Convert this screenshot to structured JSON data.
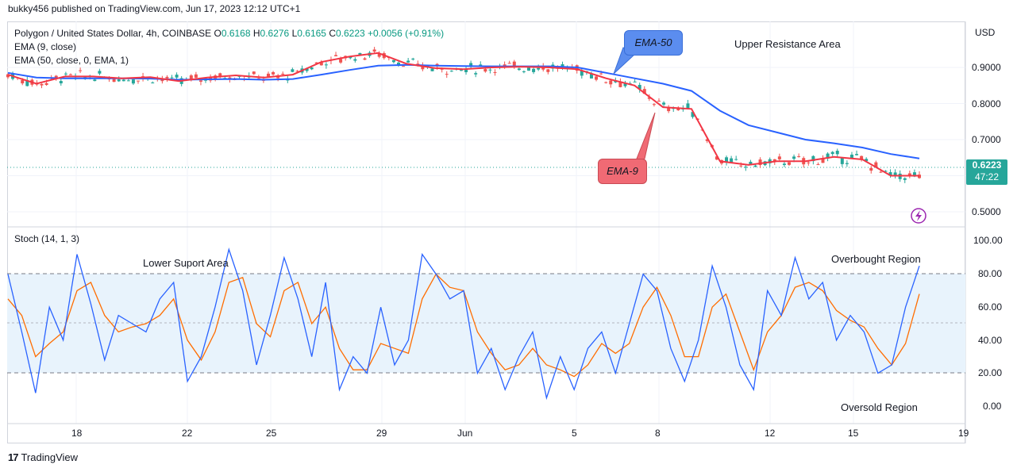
{
  "header": {
    "publisher": "bukky456 published on TradingView.com, Jun 17, 2023 12:12 UTC+1"
  },
  "legend": {
    "symbol": "Polygon / United States Dollar, 4h, COINBASE",
    "open_label": "O",
    "open": "0.6168",
    "high_label": "H",
    "high": "0.6276",
    "low_label": "L",
    "low": "0.6165",
    "close_label": "C",
    "close": "0.6223",
    "change": "+0.0056 (+0.91%)",
    "ema9": "EMA (9, close)",
    "ema50": "EMA (50, close, 0, EMA, 1)",
    "stoch": "Stoch (14, 1, 3)"
  },
  "price_axis": {
    "currency": "USD",
    "ticks": [
      "0.9000",
      "0.8000",
      "0.7000",
      "0.5000"
    ]
  },
  "stoch_axis": {
    "ticks": [
      "100.00",
      "80.00",
      "60.00",
      "40.00",
      "20.00",
      "0.00"
    ]
  },
  "time_axis": {
    "ticks": [
      "18",
      "22",
      "25",
      "29",
      "Jun",
      "5",
      "8",
      "12",
      "15",
      "19"
    ]
  },
  "price_tag": {
    "price": "0.6223",
    "countdown": "47:22"
  },
  "annotations": {
    "ema50_bubble": "EMA-50",
    "ema9_bubble": "EMA-9",
    "upper_resistance": "Upper Resistance Area",
    "lower_support": "Lower Suport Area",
    "overbought": "Overbought Region",
    "oversold": "Oversold Region"
  },
  "colors": {
    "up": "#26a69a",
    "down": "#ef5350",
    "ema9": "#f23645",
    "ema50": "#2962ff",
    "stoch_k": "#2962ff",
    "stoch_d": "#ff6d00",
    "band": "#e8f3fc",
    "bubble_blue": "#5b8def",
    "bubble_red": "#f06a74"
  },
  "footer": {
    "brand": "TradingView"
  },
  "chart_data": [
    {
      "type": "line",
      "title": "Polygon / United States Dollar, 4h, COINBASE",
      "ylabel": "USD",
      "ylim": [
        0.48,
        1.0
      ],
      "x": [
        "May 16",
        "May 17",
        "May 18",
        "May 19",
        "May 20",
        "May 21",
        "May 22",
        "May 23",
        "May 24",
        "May 25",
        "May 26",
        "May 27",
        "May 28",
        "May 29",
        "May 30",
        "May 31",
        "Jun 1",
        "Jun 2",
        "Jun 3",
        "Jun 4",
        "Jun 5",
        "Jun 6",
        "Jun 7",
        "Jun 8",
        "Jun 9",
        "Jun 10",
        "Jun 11",
        "Jun 12",
        "Jun 13",
        "Jun 14",
        "Jun 15",
        "Jun 16",
        "Jun 17"
      ],
      "series": [
        {
          "name": "EMA (9, close)",
          "values": [
            0.88,
            0.855,
            0.875,
            0.875,
            0.87,
            0.873,
            0.862,
            0.872,
            0.878,
            0.872,
            0.88,
            0.915,
            0.93,
            0.94,
            0.91,
            0.898,
            0.895,
            0.9,
            0.902,
            0.9,
            0.895,
            0.87,
            0.85,
            0.79,
            0.785,
            0.64,
            0.63,
            0.64,
            0.64,
            0.652,
            0.645,
            0.6,
            0.6
          ]
        },
        {
          "name": "EMA (50, close, 0, EMA, 1)",
          "values": [
            0.885,
            0.872,
            0.87,
            0.87,
            0.87,
            0.869,
            0.866,
            0.867,
            0.868,
            0.866,
            0.868,
            0.88,
            0.893,
            0.905,
            0.907,
            0.905,
            0.904,
            0.903,
            0.903,
            0.903,
            0.9,
            0.885,
            0.87,
            0.855,
            0.835,
            0.78,
            0.74,
            0.72,
            0.7,
            0.69,
            0.678,
            0.66,
            0.648
          ]
        }
      ],
      "last_price": 0.6223
    },
    {
      "type": "line",
      "title": "Stoch (14, 1, 3)",
      "ylim": [
        0,
        100
      ],
      "levels": [
        80,
        50,
        20
      ],
      "series": [
        {
          "name": "%K",
          "values": [
            80,
            45,
            8,
            60,
            40,
            92,
            62,
            28,
            55,
            50,
            45,
            65,
            75,
            15,
            30,
            60,
            95,
            70,
            25,
            55,
            90,
            65,
            30,
            75,
            10,
            30,
            20,
            60,
            25,
            40,
            92,
            80,
            65,
            70,
            20,
            35,
            10,
            30,
            45,
            5,
            30,
            10,
            35,
            45,
            20,
            50,
            80,
            70,
            35,
            15,
            40,
            85,
            60,
            25,
            10,
            70,
            55,
            90,
            65,
            75,
            40,
            55,
            45,
            20,
            25,
            60,
            85
          ]
        },
        {
          "name": "%D",
          "values": [
            65,
            55,
            30,
            38,
            45,
            70,
            75,
            55,
            45,
            48,
            50,
            55,
            65,
            40,
            28,
            45,
            75,
            78,
            50,
            42,
            70,
            75,
            50,
            60,
            35,
            22,
            22,
            38,
            35,
            32,
            65,
            80,
            72,
            70,
            45,
            32,
            22,
            25,
            35,
            25,
            22,
            18,
            25,
            38,
            32,
            38,
            60,
            72,
            55,
            30,
            30,
            60,
            68,
            45,
            22,
            45,
            55,
            72,
            75,
            70,
            58,
            52,
            48,
            35,
            25,
            38,
            68
          ]
        }
      ]
    }
  ]
}
